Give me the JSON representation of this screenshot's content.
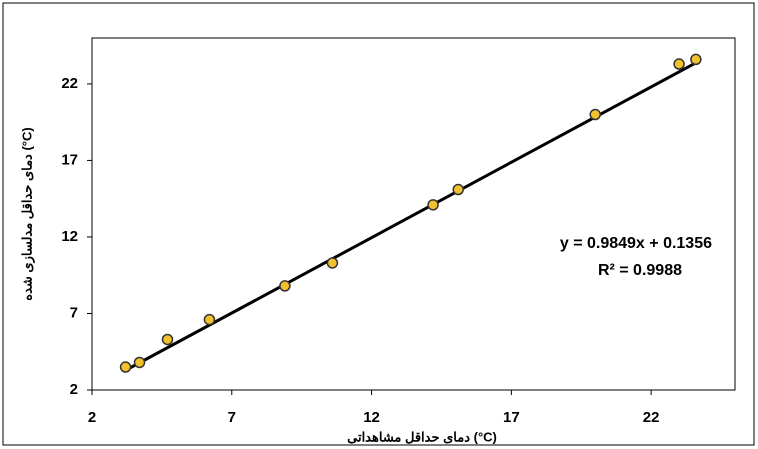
{
  "chart_data": {
    "type": "scatter",
    "x_label": "دمای حداقل مشاهداتی (°C)",
    "y_label": "دمای حداقل مدلسازی شده (°C)",
    "x": [
      3.2,
      3.7,
      4.7,
      6.2,
      8.9,
      10.6,
      14.2,
      15.1,
      20.0,
      23.0,
      23.6
    ],
    "values": [
      3.5,
      3.8,
      5.3,
      6.6,
      8.8,
      10.3,
      14.1,
      15.1,
      20.0,
      23.3,
      23.6
    ],
    "color": "#f2c12e",
    "xlim": [
      2,
      25
    ],
    "xticks": [
      2,
      7,
      12,
      17,
      22
    ],
    "ylim": [
      2,
      25
    ],
    "yticks": [
      2,
      7,
      12,
      17,
      22
    ],
    "trendline": {
      "slope": 0.9849,
      "intercept": 0.1356,
      "equation": "y = 0.9849x + 0.1356",
      "r_squared": "R² = 0.9988"
    },
    "grid": false
  }
}
